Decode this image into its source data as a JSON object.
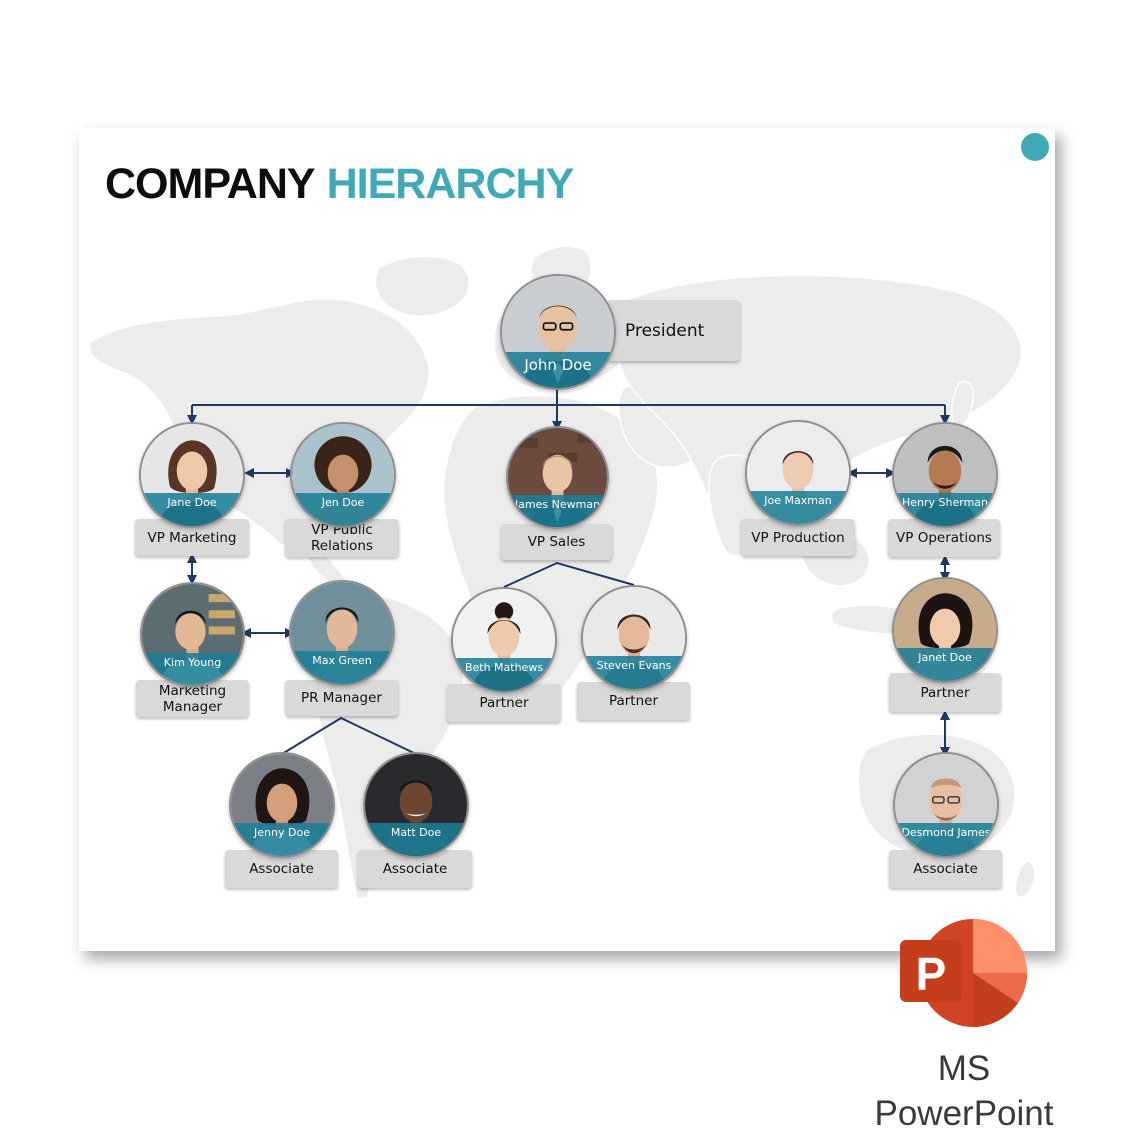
{
  "slide": {
    "title_part1": "COMPANY",
    "title_part2": "HIERARCHY",
    "accent_color": "#3fa9b5",
    "band_color": "#1b7e96",
    "connector_color": "#1f3864",
    "map_color": "#ececec"
  },
  "people": {
    "president": {
      "name": "John Doe",
      "role": "President"
    },
    "vp_marketing": {
      "name": "Jane Doe",
      "role": "VP Marketing"
    },
    "vp_pr": {
      "name": "Jen Doe",
      "role": "VP Public Relations"
    },
    "vp_sales": {
      "name": "James Newman",
      "role": "VP Sales"
    },
    "vp_production": {
      "name": "Joe Maxman",
      "role": "VP Production"
    },
    "vp_operations": {
      "name": "Henry Sherman",
      "role": "VP Operations"
    },
    "marketing_manager": {
      "name": "Kim Young",
      "role": "Marketing Manager"
    },
    "pr_manager": {
      "name": "Max Green",
      "role": "PR Manager"
    },
    "sales_partner_1": {
      "name": "Beth Mathews",
      "role": "Partner"
    },
    "sales_partner_2": {
      "name": "Steven Evans",
      "role": "Partner"
    },
    "ops_partner": {
      "name": "Janet Doe",
      "role": "Partner"
    },
    "associate_1": {
      "name": "Jenny Doe",
      "role": "Associate"
    },
    "associate_2": {
      "name": "Matt Doe",
      "role": "Associate"
    },
    "associate_3": {
      "name": "Desmond James",
      "role": "Associate"
    }
  },
  "app_badge": {
    "logo_letter": "P",
    "caption_line1": "MS",
    "caption_line2": "PowerPoint",
    "logo_colors": [
      "#d04423",
      "#ff8f6b",
      "#ed6c47",
      "#c43e1c"
    ]
  }
}
